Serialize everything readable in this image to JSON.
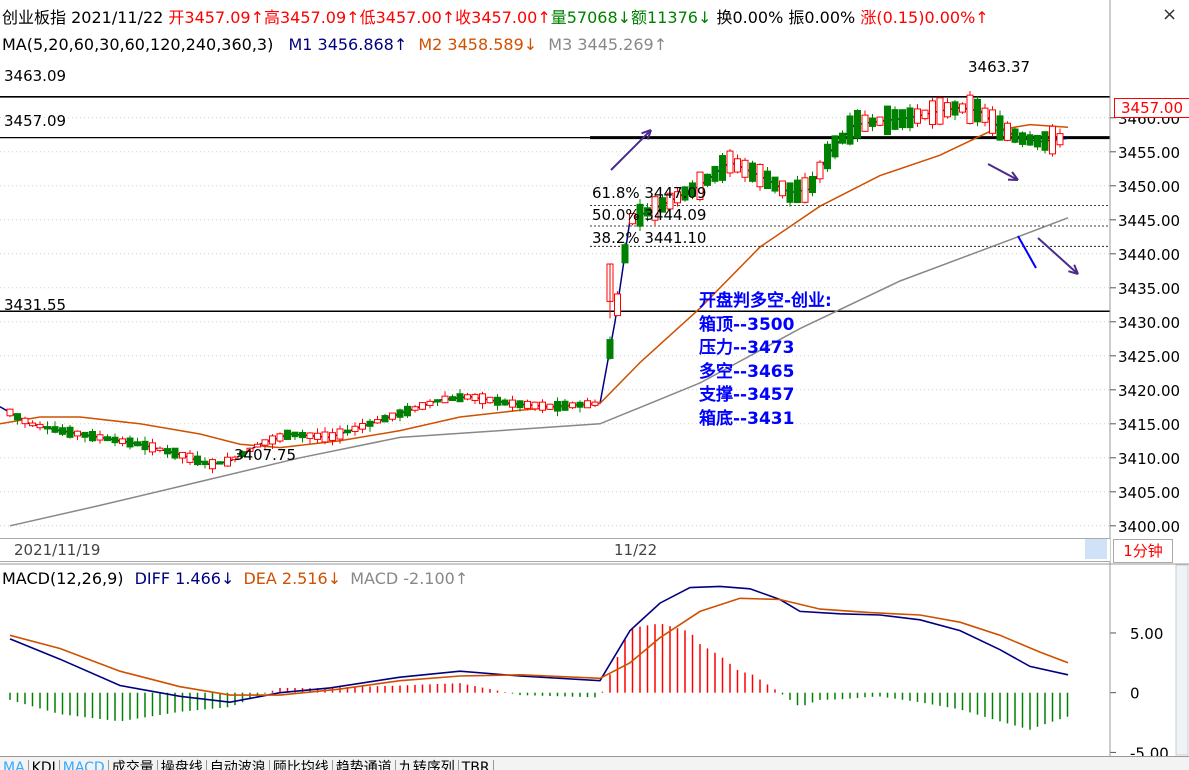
{
  "header": {
    "name": "创业板指",
    "date": "2021/11/22",
    "open": "开3457.09↑",
    "high": "高3457.09↑",
    "low": "低3457.00↑",
    "close": "收3457.00↑",
    "volume": "量57068↓",
    "amount": "额11376↓",
    "turnover": "换0.00%",
    "amplitude": "振0.00%",
    "change": "涨(0.15)0.00%↑"
  },
  "ma_line": {
    "params": "MA(5,20,60,30,60,120,240,360,3)",
    "m1": "M1 3456.868↑",
    "m2": "M2 3458.589↓",
    "m3": "M3 3445.269↑"
  },
  "macd_line": {
    "params": "MACD(12,26,9)",
    "diff": "DIFF 1.466↓",
    "dea": "DEA 2.516↓",
    "macd": "MACD -2.100↑"
  },
  "levels": {
    "l1": "3463.09",
    "l2": "3457.09",
    "l3": "3431.55",
    "high_mark": "3463.37",
    "low_mark": "3407.75",
    "current_price": "3457.00"
  },
  "fib": {
    "f618": "61.8%  3447.09",
    "f500": "50.0%  3444.09",
    "f382": "38.2%  3441.10"
  },
  "annotation": {
    "title": "开盘判多空-创业:",
    "line1": "箱顶--3500",
    "line2": "压力--3473",
    "line3": "多空--3465",
    "line4": "支撑--3457",
    "line5": "箱底--3431"
  },
  "dates": {
    "d1": "2021/11/19",
    "d2": "11/22"
  },
  "period": "1分钟",
  "close_button": "×",
  "tabs": [
    "MA",
    "KDJ",
    "MACD",
    "成交量",
    "操盘线",
    "自动波浪",
    "顾比均线",
    "趋势通道",
    "九转序列",
    "TBR"
  ],
  "colors": {
    "up": "#ff0000",
    "down": "#008000",
    "m1": "#000080",
    "m2": "#d05000",
    "m3": "#888888",
    "label_blue": "#0000ff"
  },
  "chart_data": [
    {
      "type": "candlestick",
      "title": "",
      "y_axis_ticks": [
        3400,
        3405,
        3410,
        3415,
        3420,
        3425,
        3430,
        3435,
        3440,
        3445,
        3450,
        3455,
        3460
      ],
      "ylim": [
        3398.5,
        3468.5
      ],
      "x_labels": [
        "2021/11/19",
        "11/22"
      ],
      "series": [
        {
          "name": "M1",
          "points": [
            [
              0,
              3417.5
            ],
            [
              30,
              3415
            ],
            [
              60,
              3414
            ],
            [
              100,
              3413
            ],
            [
              140,
              3412
            ],
            [
              180,
              3410.5
            ],
            [
              210,
              3409
            ],
            [
              230,
              3409.5
            ],
            [
              260,
              3412
            ],
            [
              290,
              3413.5
            ],
            [
              330,
              3413
            ],
            [
              370,
              3415
            ],
            [
              400,
              3416.5
            ],
            [
              440,
              3418.5
            ],
            [
              470,
              3419
            ],
            [
              510,
              3418
            ],
            [
              550,
              3417.5
            ],
            [
              600,
              3418
            ],
            [
              615,
              3430
            ],
            [
              630,
              3445
            ],
            [
              660,
              3447
            ],
            [
              700,
              3450
            ],
            [
              730,
              3453.5
            ],
            [
              760,
              3451.5
            ],
            [
              790,
              3449
            ],
            [
              810,
              3449.5
            ],
            [
              830,
              3455
            ],
            [
              855,
              3459
            ],
            [
              880,
              3459.5
            ],
            [
              910,
              3460
            ],
            [
              940,
              3461
            ],
            [
              960,
              3461.5
            ],
            [
              980,
              3461
            ],
            [
              1000,
              3458.5
            ],
            [
              1020,
              3457
            ],
            [
              1040,
              3456.5
            ],
            [
              1068,
              3457
            ]
          ]
        },
        {
          "name": "M2",
          "points": [
            [
              0,
              3415
            ],
            [
              40,
              3416
            ],
            [
              80,
              3416
            ],
            [
              140,
              3415
            ],
            [
              200,
              3413.5
            ],
            [
              240,
              3412
            ],
            [
              280,
              3411.5
            ],
            [
              340,
              3412.5
            ],
            [
              400,
              3414
            ],
            [
              460,
              3416
            ],
            [
              520,
              3417
            ],
            [
              600,
              3418
            ],
            [
              640,
              3424
            ],
            [
              700,
              3432
            ],
            [
              760,
              3441
            ],
            [
              820,
              3447
            ],
            [
              880,
              3451.5
            ],
            [
              940,
              3454.5
            ],
            [
              990,
              3458
            ],
            [
              1030,
              3459
            ],
            [
              1068,
              3458.6
            ]
          ]
        },
        {
          "name": "M3",
          "points": [
            [
              10,
              3400
            ],
            [
              100,
              3403
            ],
            [
              200,
              3406.5
            ],
            [
              300,
              3410
            ],
            [
              400,
              3413
            ],
            [
              500,
              3414
            ],
            [
              600,
              3415
            ],
            [
              700,
              3421
            ],
            [
              800,
              3429
            ],
            [
              900,
              3436
            ],
            [
              1000,
              3441.5
            ],
            [
              1068,
              3445.3
            ]
          ]
        }
      ],
      "horizontal_lines": [
        3463.09,
        3457.09,
        3431.55
      ],
      "fibonacci": [
        {
          "level": "61.8%",
          "value": 3447.09
        },
        {
          "level": "50.0%",
          "value": 3444.09
        },
        {
          "level": "38.2%",
          "value": 3441.1
        }
      ],
      "markers": {
        "high": 3463.37,
        "low": 3407.75,
        "current": 3457.0
      }
    },
    {
      "type": "macd",
      "title": "",
      "y_axis_ticks": [
        5.0,
        0,
        -5.0
      ],
      "ylim": [
        -5.3,
        9.6
      ],
      "series": [
        {
          "name": "DIFF",
          "points": [
            [
              10,
              4.5
            ],
            [
              60,
              2.8
            ],
            [
              120,
              0.6
            ],
            [
              180,
              -0.3
            ],
            [
              230,
              -0.8
            ],
            [
              280,
              0
            ],
            [
              330,
              0.4
            ],
            [
              400,
              1.3
            ],
            [
              460,
              1.8
            ],
            [
              520,
              1.4
            ],
            [
              600,
              1.0
            ],
            [
              630,
              5.2
            ],
            [
              660,
              7.5
            ],
            [
              690,
              8.8
            ],
            [
              720,
              8.9
            ],
            [
              750,
              8.7
            ],
            [
              780,
              7.8
            ],
            [
              800,
              6.8
            ],
            [
              840,
              6.6
            ],
            [
              880,
              6.5
            ],
            [
              920,
              6.1
            ],
            [
              960,
              5.2
            ],
            [
              1000,
              3.6
            ],
            [
              1030,
              2.2
            ],
            [
              1068,
              1.5
            ]
          ]
        },
        {
          "name": "DEA",
          "points": [
            [
              10,
              4.8
            ],
            [
              60,
              3.7
            ],
            [
              120,
              1.8
            ],
            [
              180,
              0.5
            ],
            [
              230,
              -0.2
            ],
            [
              280,
              -0.2
            ],
            [
              340,
              0.3
            ],
            [
              400,
              1.0
            ],
            [
              460,
              1.4
            ],
            [
              520,
              1.5
            ],
            [
              600,
              1.2
            ],
            [
              630,
              2.5
            ],
            [
              660,
              4.6
            ],
            [
              700,
              6.8
            ],
            [
              740,
              7.9
            ],
            [
              780,
              7.8
            ],
            [
              820,
              7.0
            ],
            [
              870,
              6.7
            ],
            [
              920,
              6.5
            ],
            [
              960,
              5.9
            ],
            [
              1000,
              4.8
            ],
            [
              1040,
              3.4
            ],
            [
              1068,
              2.5
            ]
          ]
        }
      ]
    }
  ]
}
